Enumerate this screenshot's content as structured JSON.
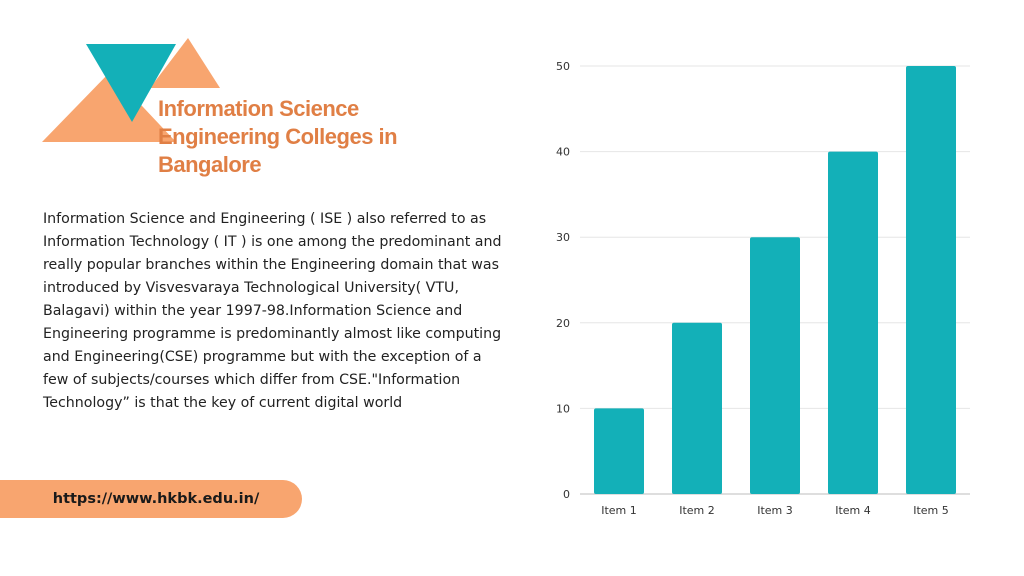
{
  "header": {
    "title": "Information Science Engineering Colleges in Bangalore"
  },
  "body": {
    "description": "Information Science and Engineering ( ISE ) also referred to as Information Technology ( IT ) is one among the predominant and really popular branches within the Engineering domain that was introduced by Visvesvaraya Technological University( VTU, Balagavi) within the year 1997-98.Information Science and Engineering programme is predominantly almost like computing and Engineering(CSE) programme but with the exception of a few of subjects/courses which differ from CSE.\"Information Technology” is that the key of current digital world"
  },
  "footer": {
    "url": "https://www.hkbk.edu.in/"
  },
  "colors": {
    "accent_orange": "#f8a56f",
    "accent_teal": "#13b0b8",
    "title_orange": "#e07f45"
  },
  "chart_data": {
    "type": "bar",
    "categories": [
      "Item 1",
      "Item 2",
      "Item 3",
      "Item 4",
      "Item 5"
    ],
    "values": [
      10,
      20,
      30,
      40,
      50
    ],
    "ylim": [
      0,
      50
    ],
    "yticks": [
      "0",
      "10",
      "20",
      "30",
      "40",
      "50"
    ],
    "grid": true,
    "color": "#13b0b8"
  }
}
